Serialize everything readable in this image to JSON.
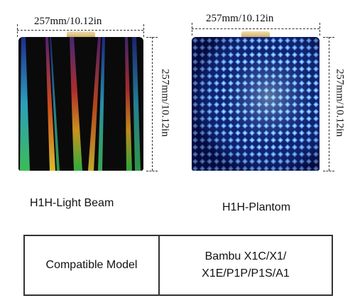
{
  "products": [
    {
      "name": "H1H-Light Beam",
      "width_label": "257mm/10.12in",
      "height_label": "257mm/10.12in"
    },
    {
      "name": "H1H-Plantom",
      "width_label": "257mm/10.12in",
      "height_label": "257mm/10.12in"
    }
  ],
  "spec_table": {
    "label": "Compatible Model",
    "models_line1": "Bambu X1C/X1/",
    "models_line2": "X1E/P1P/P1S/A1"
  },
  "colors": {
    "plate_dark": "#0a0a0a",
    "holo_blue": "#1a5cff",
    "tab_gold": "#d8b26a"
  }
}
